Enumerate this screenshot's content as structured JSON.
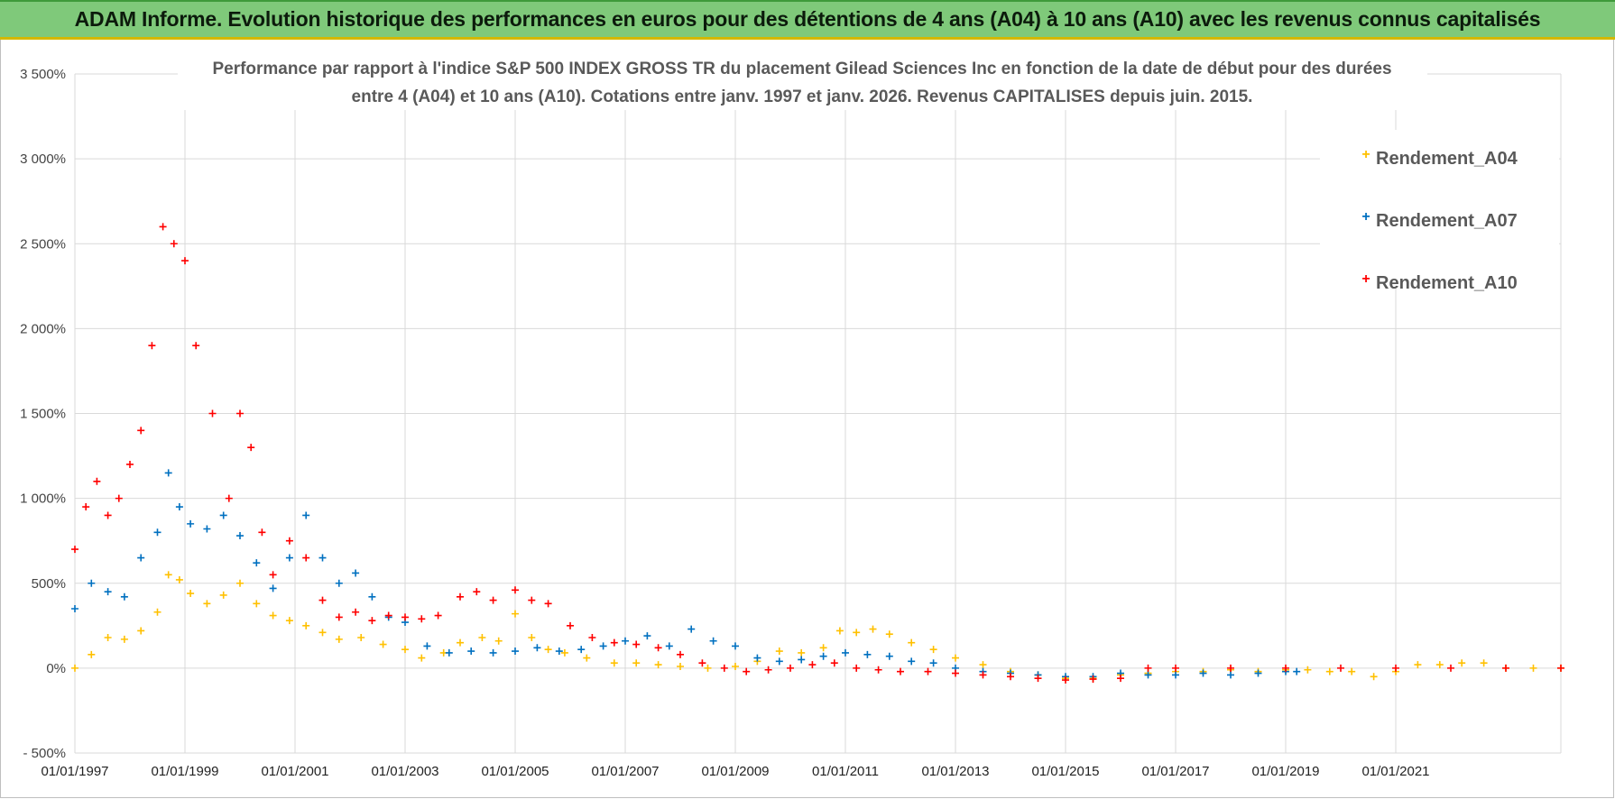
{
  "header": {
    "title": "ADAM Informe. Evolution historique des performances en euros pour des détentions de 4 ans (A04) à 10 ans (A10) avec les revenus connus capitalisés"
  },
  "chart_data": {
    "type": "scatter",
    "title_lines": [
      "Performance par rapport à l'indice S&P 500 INDEX GROSS TR  du placement Gilead Sciences Inc en fonction de la date de début pour des durées",
      "entre 4 (A04) et 10 ans (A10).  Cotations entre janv. 1997 et janv. 2026. Revenus CAPITALISES depuis juin. 2015."
    ],
    "xlabel": "",
    "ylabel": "",
    "xlim": [
      1997.0,
      2024.0
    ],
    "ylim": [
      -500,
      3500
    ],
    "yticks": [
      -500,
      0,
      500,
      1000,
      1500,
      2000,
      2500,
      3000,
      3500
    ],
    "ytick_labels": [
      "- 500%",
      "0%",
      "500%",
      "1 000%",
      "1 500%",
      "2 000%",
      "2 500%",
      "3 000%",
      "3 500%"
    ],
    "xticks": [
      1997,
      1999,
      2001,
      2003,
      2005,
      2007,
      2009,
      2011,
      2013,
      2015,
      2017,
      2019,
      2021
    ],
    "xtick_labels": [
      "01/01/1997",
      "01/01/1999",
      "01/01/2001",
      "01/01/2003",
      "01/01/2005",
      "01/01/2007",
      "01/01/2009",
      "01/01/2011",
      "01/01/2013",
      "01/01/2015",
      "01/01/2017",
      "01/01/2019",
      "01/01/2021"
    ],
    "legend_position": "top-right",
    "series": [
      {
        "name": "Rendement_A04",
        "color": "#ffc000",
        "x": [
          1997.0,
          1997.3,
          1997.6,
          1997.9,
          1998.2,
          1998.5,
          1998.7,
          1998.9,
          1999.1,
          1999.4,
          1999.7,
          2000.0,
          2000.3,
          2000.6,
          2000.9,
          2001.2,
          2001.5,
          2001.8,
          2002.2,
          2002.6,
          2003.0,
          2003.3,
          2003.7,
          2004.0,
          2004.4,
          2004.7,
          2005.0,
          2005.3,
          2005.6,
          2005.9,
          2006.3,
          2006.8,
          2007.2,
          2007.6,
          2008.0,
          2008.5,
          2009.0,
          2009.4,
          2009.8,
          2010.2,
          2010.6,
          2010.9,
          2011.2,
          2011.5,
          2011.8,
          2012.2,
          2012.6,
          2013.0,
          2013.5,
          2014.0,
          2014.5,
          2015.0,
          2015.5,
          2016.0,
          2016.5,
          2017.0,
          2017.5,
          2018.0,
          2018.5,
          2019.0,
          2019.4,
          2019.8,
          2020.2,
          2020.6,
          2021.0,
          2021.4,
          2021.8,
          2022.2,
          2022.6,
          2023.0,
          2023.5,
          2024.0
        ],
        "y": [
          0,
          80,
          180,
          170,
          220,
          330,
          550,
          520,
          440,
          380,
          430,
          500,
          380,
          310,
          280,
          250,
          210,
          170,
          180,
          140,
          110,
          60,
          90,
          150,
          180,
          160,
          320,
          180,
          110,
          90,
          60,
          30,
          30,
          20,
          10,
          0,
          10,
          40,
          100,
          90,
          120,
          220,
          210,
          230,
          200,
          150,
          110,
          60,
          20,
          -20,
          -40,
          -60,
          -60,
          -40,
          -30,
          -20,
          -20,
          -10,
          -20,
          -10,
          -10,
          -20,
          -20,
          -50,
          -20,
          20,
          20,
          30,
          30,
          0,
          0,
          0
        ]
      },
      {
        "name": "Rendement_A07",
        "color": "#0070c0",
        "x": [
          1997.0,
          1997.3,
          1997.6,
          1997.9,
          1998.2,
          1998.5,
          1998.7,
          1998.9,
          1999.1,
          1999.4,
          1999.7,
          2000.0,
          2000.3,
          2000.6,
          2000.9,
          2001.2,
          2001.5,
          2001.8,
          2002.1,
          2002.4,
          2002.7,
          2003.0,
          2003.4,
          2003.8,
          2004.2,
          2004.6,
          2005.0,
          2005.4,
          2005.8,
          2006.2,
          2006.6,
          2007.0,
          2007.4,
          2007.8,
          2008.2,
          2008.6,
          2009.0,
          2009.4,
          2009.8,
          2010.2,
          2010.6,
          2011.0,
          2011.4,
          2011.8,
          2012.2,
          2012.6,
          2013.0,
          2013.5,
          2014.0,
          2014.5,
          2015.0,
          2015.5,
          2016.0,
          2016.5,
          2017.0,
          2017.5,
          2018.0,
          2018.5,
          2019.0,
          2019.2
        ],
        "y": [
          350,
          500,
          450,
          420,
          650,
          800,
          1150,
          950,
          850,
          820,
          900,
          780,
          620,
          470,
          650,
          900,
          650,
          500,
          560,
          420,
          300,
          270,
          130,
          90,
          100,
          90,
          100,
          120,
          100,
          110,
          130,
          160,
          190,
          130,
          230,
          160,
          130,
          60,
          40,
          50,
          70,
          90,
          80,
          70,
          40,
          30,
          0,
          -20,
          -30,
          -40,
          -50,
          -50,
          -30,
          -40,
          -40,
          -30,
          -40,
          -30,
          -20,
          -20
        ]
      },
      {
        "name": "Rendement_A10",
        "color": "#ff0000",
        "x": [
          1997.0,
          1997.2,
          1997.4,
          1997.6,
          1997.8,
          1998.0,
          1998.2,
          1998.4,
          1998.6,
          1998.8,
          1999.0,
          1999.2,
          1999.5,
          1999.8,
          2000.0,
          2000.2,
          2000.4,
          2000.6,
          2000.9,
          2001.2,
          2001.5,
          2001.8,
          2002.1,
          2002.4,
          2002.7,
          2003.0,
          2003.3,
          2003.6,
          2004.0,
          2004.3,
          2004.6,
          2005.0,
          2005.3,
          2005.6,
          2006.0,
          2006.4,
          2006.8,
          2007.2,
          2007.6,
          2008.0,
          2008.4,
          2008.8,
          2009.2,
          2009.6,
          2010.0,
          2010.4,
          2010.8,
          2011.2,
          2011.6,
          2012.0,
          2012.5,
          2013.0,
          2013.5,
          2014.0,
          2014.5,
          2015.0,
          2015.5,
          2016.0,
          2016.5,
          2017.0,
          2018.0,
          2019.0,
          2020.0,
          2021.0,
          2022.0,
          2023.0,
          2024.0
        ],
        "y": [
          700,
          950,
          1100,
          900,
          1000,
          1200,
          1400,
          1900,
          2600,
          2500,
          2400,
          1900,
          1500,
          1000,
          1500,
          1300,
          800,
          550,
          750,
          650,
          400,
          300,
          330,
          280,
          310,
          300,
          290,
          310,
          420,
          450,
          400,
          460,
          400,
          380,
          250,
          180,
          150,
          140,
          120,
          80,
          30,
          0,
          -20,
          -10,
          0,
          20,
          30,
          0,
          -10,
          -20,
          -20,
          -30,
          -40,
          -50,
          -60,
          -70,
          -65,
          -60,
          0,
          0,
          0,
          0,
          0,
          0,
          0,
          0,
          0
        ]
      }
    ]
  }
}
